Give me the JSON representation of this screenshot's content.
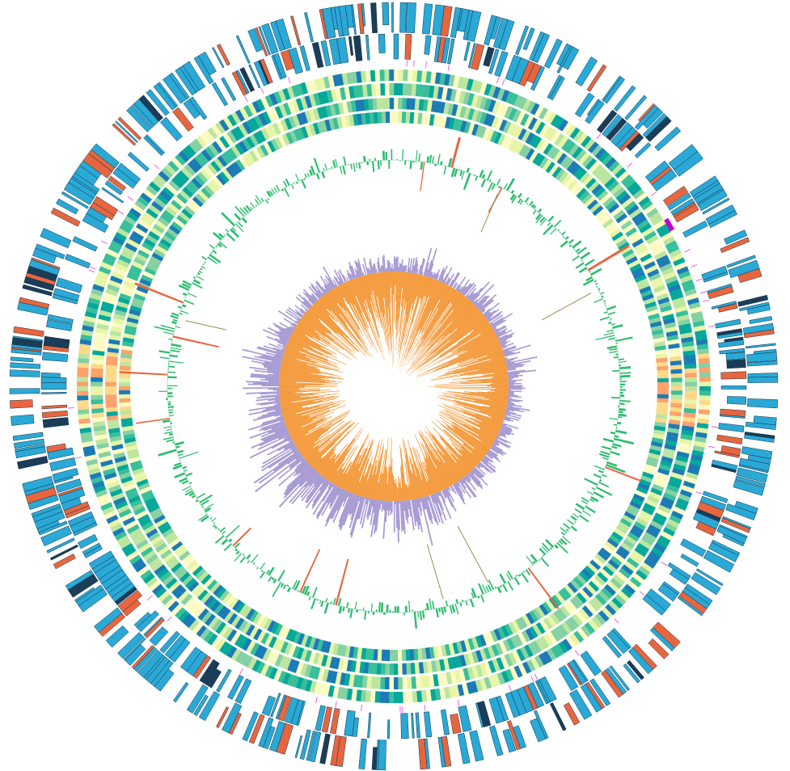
{
  "figure": {
    "type": "circular-genome-map",
    "background": "#ffffff",
    "tracks": [
      {
        "id": "cds-outer",
        "kind": "feature-blocks",
        "colors": [
          "#2aa9d6",
          "#e8663f",
          "#1b3d57"
        ]
      },
      {
        "id": "cds-inner",
        "kind": "feature-blocks",
        "colors": [
          "#2aa9d6",
          "#e8663f",
          "#1b3d57"
        ]
      },
      {
        "id": "markers",
        "kind": "ticks",
        "colors": [
          "#e040e0",
          "#c400d0"
        ]
      },
      {
        "id": "heat-rings",
        "kind": "heatmap",
        "ring_count": 4,
        "palette": [
          "#fdfbc4",
          "#e6f5a7",
          "#bce6a0",
          "#86d1a3",
          "#38bf9b",
          "#06a89a",
          "#1c7bb5",
          "#fdd98a",
          "#fca26a"
        ]
      },
      {
        "id": "gc-skew-like",
        "kind": "bars",
        "colors": [
          "#2dbd6e",
          "#e8663f",
          "#9b8a4a"
        ]
      },
      {
        "id": "gc-content-like",
        "kind": "bars",
        "colors": [
          "#f49a3c",
          "#a79bd3"
        ]
      }
    ]
  }
}
